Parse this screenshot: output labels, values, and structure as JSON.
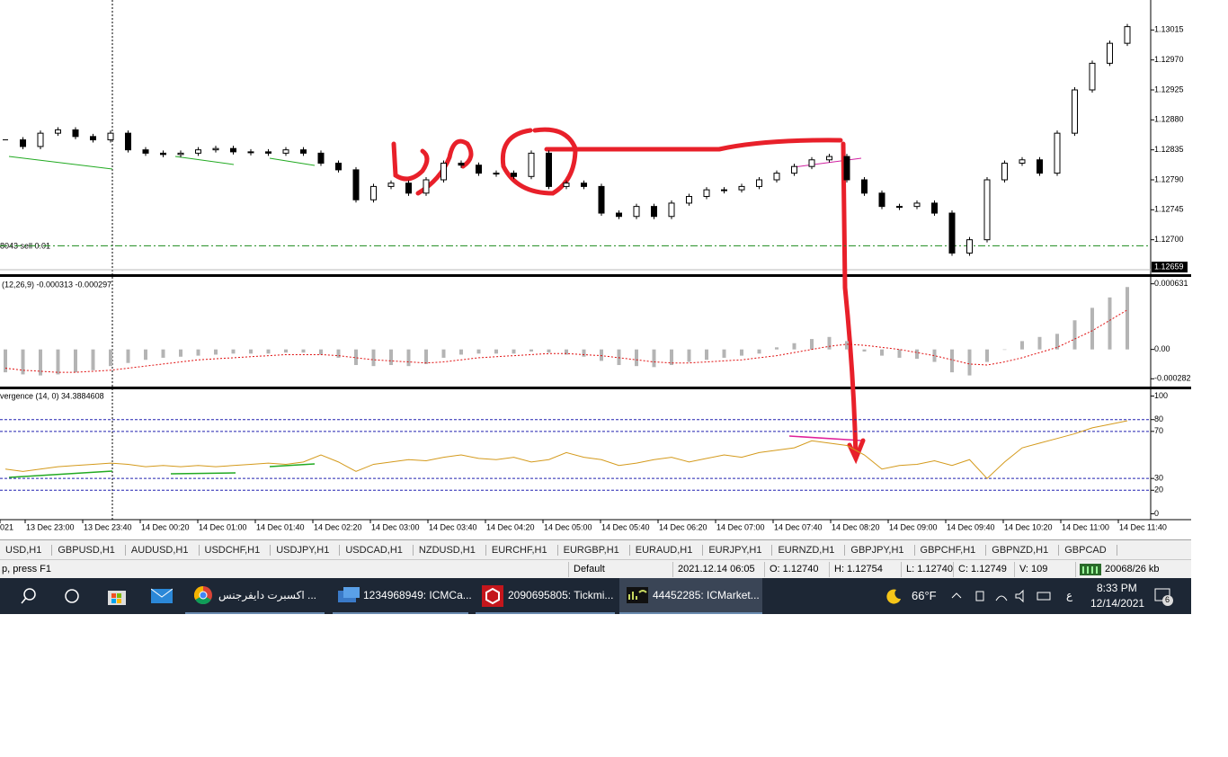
{
  "price_chart": {
    "ylim": [
      1.12655,
      1.1306
    ],
    "yticks": [
      {
        "value": 1.13015,
        "label": "1.13015"
      },
      {
        "value": 1.1297,
        "label": "1.12970"
      },
      {
        "value": 1.12925,
        "label": "1.12925"
      },
      {
        "value": 1.1288,
        "label": "1.12880"
      },
      {
        "value": 1.12835,
        "label": "1.12835"
      },
      {
        "value": 1.1279,
        "label": "1.12790"
      },
      {
        "value": 1.12745,
        "label": "1.12745"
      },
      {
        "value": 1.127,
        "label": "1.12700"
      }
    ],
    "current_price": 1.12659,
    "order_label": "8043 sell 0.01",
    "order_level": 1.12691,
    "closes": [
      1.1285,
      1.1284,
      1.1286,
      1.12865,
      1.12855,
      1.1285,
      1.1286,
      1.12835,
      1.1283,
      1.12828,
      1.1283,
      1.12835,
      1.12837,
      1.12832,
      1.12832,
      1.1283,
      1.12835,
      1.1283,
      1.12815,
      1.12805,
      1.1276,
      1.1278,
      1.12785,
      1.1277,
      1.1279,
      1.12815,
      1.12812,
      1.128,
      1.128,
      1.12795,
      1.1283,
      1.1278,
      1.12785,
      1.1278,
      1.1274,
      1.12735,
      1.1275,
      1.12735,
      1.12755,
      1.12765,
      1.12775,
      1.12775,
      1.1278,
      1.1279,
      1.128,
      1.1281,
      1.1282,
      1.12825,
      1.1279,
      1.1277,
      1.1275,
      1.1275,
      1.12755,
      1.1274,
      1.1268,
      1.127,
      1.1279,
      1.12815,
      1.1282,
      1.128,
      1.1286,
      1.12925,
      1.12965,
      1.12995,
      1.1302
    ]
  },
  "macd": {
    "label": "(12,26,9) -0.000313 -0.000297",
    "ylim": [
      -0.00034,
      0.00068
    ],
    "yticks": [
      0.000631,
      {
        "value": 0,
        "label": "0.00"
      },
      -0.000282
    ],
    "histogram": [
      -0.00022,
      -0.00024,
      -0.00025,
      -0.00024,
      -0.00022,
      -0.0002,
      -0.00016,
      -0.00013,
      -0.0001,
      -8e-05,
      -7e-05,
      -6e-05,
      -5e-05,
      -4e-05,
      -4e-05,
      -4e-05,
      -3e-05,
      -3e-05,
      -5e-05,
      -8e-05,
      -0.00015,
      -0.00016,
      -0.00015,
      -0.00016,
      -0.00014,
      -8e-05,
      -5e-05,
      -4e-05,
      -4e-05,
      -4e-05,
      -2e-05,
      -3e-05,
      -5e-05,
      -7e-05,
      -0.00011,
      -0.00015,
      -0.00016,
      -0.00017,
      -0.00015,
      -0.00012,
      -0.0001,
      -8e-05,
      -6e-05,
      -4e-05,
      2e-05,
      6e-05,
      0.0001,
      0.00012,
      8e-05,
      -2e-05,
      -6e-05,
      -8e-05,
      -9e-05,
      -0.00012,
      -0.00022,
      -0.00025,
      -0.00012,
      0,
      8e-05,
      0.00012,
      0.00015,
      0.00028,
      0.0004,
      0.0005,
      0.0006
    ],
    "signal": [
      -0.00018,
      -0.0002,
      -0.00021,
      -0.00022,
      -0.00022,
      -0.00021,
      -0.0002,
      -0.00018,
      -0.00016,
      -0.00014,
      -0.00012,
      -0.0001,
      -9e-05,
      -8e-05,
      -7e-05,
      -6e-05,
      -5e-05,
      -5e-05,
      -5e-05,
      -6e-05,
      -8e-05,
      -0.0001,
      -0.00011,
      -0.00012,
      -0.00013,
      -0.00012,
      -0.0001,
      -8e-05,
      -7e-05,
      -6e-05,
      -5e-05,
      -4e-05,
      -4e-05,
      -5e-05,
      -6e-05,
      -8e-05,
      -0.0001,
      -0.00012,
      -0.00013,
      -0.00013,
      -0.00012,
      -0.00011,
      -0.0001,
      -8e-05,
      -6e-05,
      -3e-05,
      0,
      3e-05,
      5e-05,
      4e-05,
      2e-05,
      0,
      -3e-05,
      -6e-05,
      -0.0001,
      -0.00014,
      -0.00015,
      -0.00012,
      -8e-05,
      -3e-05,
      2e-05,
      0.0001,
      0.00018,
      0.00028,
      0.00038
    ]
  },
  "oscillator": {
    "label": "vergence (14, 0) 34.3884608",
    "ylim": [
      -5,
      105
    ],
    "yticks": [
      100,
      80,
      70,
      30,
      20,
      0
    ],
    "levels": [
      80,
      70,
      30,
      20
    ],
    "values": [
      38,
      36,
      38,
      40,
      41,
      42,
      43,
      42,
      40,
      41,
      40,
      41,
      40,
      41,
      42,
      43,
      42,
      44,
      50,
      44,
      36,
      42,
      44,
      46,
      45,
      48,
      50,
      47,
      46,
      48,
      44,
      46,
      52,
      48,
      46,
      41,
      43,
      46,
      48,
      44,
      47,
      50,
      48,
      52,
      54,
      56,
      62,
      60,
      58,
      50,
      38,
      41,
      42,
      45,
      41,
      46,
      30,
      44,
      56,
      60,
      64,
      68,
      73,
      76,
      79
    ]
  },
  "time_labels": [
    "021",
    "13 Dec 23:00",
    "13 Dec 23:40",
    "14 Dec 00:20",
    "14 Dec 01:00",
    "14 Dec 01:40",
    "14 Dec 02:20",
    "14 Dec 03:00",
    "14 Dec 03:40",
    "14 Dec 04:20",
    "14 Dec 05:00",
    "14 Dec 05:40",
    "14 Dec 06:20",
    "14 Dec 07:00",
    "14 Dec 07:40",
    "14 Dec 08:20",
    "14 Dec 09:00",
    "14 Dec 09:40",
    "14 Dec 10:20",
    "14 Dec 11:00",
    "14 Dec 11:40"
  ],
  "tabs": [
    "USD,H1",
    "GBPUSD,H1",
    "AUDUSD,H1",
    "USDCHF,H1",
    "USDJPY,H1",
    "USDCAD,H1",
    "NZDUSD,H1",
    "EURCHF,H1",
    "EURGBP,H1",
    "EURAUD,H1",
    "EURJPY,H1",
    "EURNZD,H1",
    "GBPJPY,H1",
    "GBPCHF,H1",
    "GBPNZD,H1",
    "GBPCAD"
  ],
  "status": {
    "help": "p, press F1",
    "profile": "Default",
    "time": "2021.12.14 06:05",
    "open": "O: 1.12740",
    "high": "H: 1.12754",
    "low": "L: 1.12740",
    "close": "C: 1.12749",
    "volume": "V: 109",
    "traffic": "20068/26 kb"
  },
  "taskbar": {
    "apps": [
      "اكسبرت دايفرجنس ...",
      "1234968949: ICMCa...",
      "2090695805: Tickmi...",
      "44452285: ICMarket..."
    ],
    "weather": "66°F",
    "language": "ع",
    "time": "8:33 PM",
    "date": "12/14/2021",
    "notifications": "6"
  }
}
